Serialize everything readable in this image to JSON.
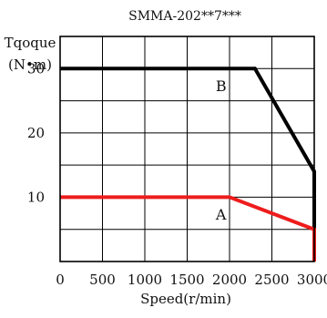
{
  "chart_data": {
    "type": "line",
    "title": "SMMA-202**7***",
    "xlabel": "Speed(r/min)",
    "ylabel_line1": "Tqoque",
    "ylabel_line2": "(N•m)",
    "xlim": [
      0,
      3000
    ],
    "ylim": [
      0,
      35
    ],
    "grid": true,
    "x_ticks": [
      0,
      500,
      1000,
      1500,
      2000,
      2500,
      3000
    ],
    "x_tick_labels": [
      "0",
      "500",
      "1000",
      "1500",
      "2000",
      "2500",
      "3000"
    ],
    "y_ticks": [
      10,
      20,
      30
    ],
    "y_tick_labels": [
      "10",
      "20",
      "30"
    ],
    "series": [
      {
        "label": "B",
        "color": "#000000",
        "points": [
          [
            0,
            30
          ],
          [
            2300,
            30
          ],
          [
            3000,
            14
          ],
          [
            3000,
            0
          ]
        ]
      },
      {
        "label": "A",
        "color": "#ee1c1c",
        "points": [
          [
            0,
            10
          ],
          [
            2000,
            10
          ],
          [
            3000,
            5
          ],
          [
            3000,
            0
          ]
        ]
      }
    ],
    "annotations": [
      {
        "text": "B",
        "x": 1900,
        "y": 26.5
      },
      {
        "text": "A",
        "x": 1900,
        "y": 6.5
      }
    ]
  }
}
